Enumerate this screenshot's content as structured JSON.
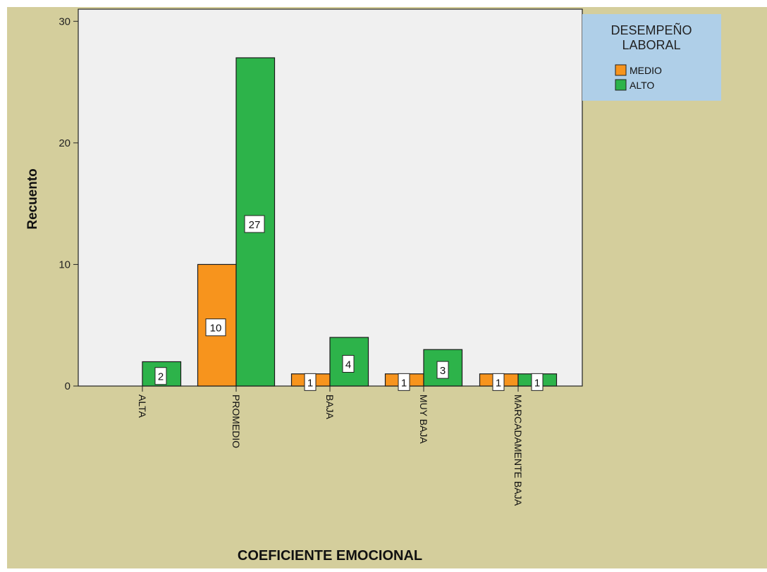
{
  "chart_data": {
    "type": "bar",
    "title": "",
    "xlabel": "COEFICIENTE EMOCIONAL",
    "ylabel": "Recuento",
    "ylim": [
      0,
      31
    ],
    "yticks": [
      0,
      10,
      20,
      30
    ],
    "categories": [
      "ALTA",
      "PROMEDIO",
      "BAJA",
      "MUY BAJA",
      "MARCADAMENTE BAJA"
    ],
    "series": [
      {
        "name": "MEDIO",
        "color": "#F7941D",
        "values": [
          0,
          10,
          1,
          1,
          1
        ]
      },
      {
        "name": "ALTO",
        "color": "#2DB34A",
        "values": [
          2,
          27,
          4,
          3,
          1
        ]
      }
    ],
    "legend": {
      "title_lines": [
        "DESEMPEÑO",
        "LABORAL"
      ],
      "placement": "top-right"
    },
    "grid": false,
    "colors": {
      "outer_background": "#D4CE9C",
      "plot_background": "#F0F0F0",
      "legend_background": "#AFCFE8"
    }
  }
}
